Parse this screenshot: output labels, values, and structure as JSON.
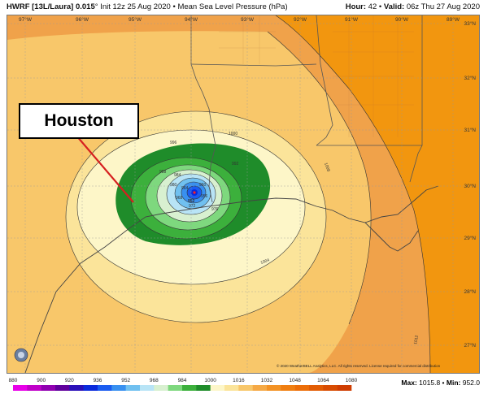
{
  "header": {
    "model": "HWRF [13L/Laura] 0.015",
    "degree": "°",
    "init": "Init 12z 25 Aug 2020",
    "sep": " • ",
    "product": "Mean Sea Level Pressure (hPa)",
    "hour_label": "Hour:",
    "hour_value": "42",
    "valid_label": "Valid:",
    "valid_value": "06z Thu 27 Aug 2020"
  },
  "map": {
    "lon_ticks": [
      "97°W",
      "96°W",
      "95°W",
      "94°W",
      "93°W",
      "92°W",
      "91°W",
      "90°W",
      "89°W"
    ],
    "lat_ticks": [
      "33°N",
      "32°N",
      "31°N",
      "30°N",
      "29°N",
      "28°N",
      "27°N"
    ],
    "contour_labels": [
      "1000",
      "1008",
      "1004",
      "1012",
      "996",
      "992",
      "988",
      "984",
      "980",
      "976",
      "972",
      "968",
      "964",
      "960",
      "956",
      "952"
    ],
    "center_value": "952",
    "annotation": "Houston",
    "copyright": "© 2020 WeatherBELL Analytics, LLC. All rights reserved. License required for commercial distribution",
    "logo_text": "WeatherBELL"
  },
  "colorbar": {
    "tick_labels": [
      "880",
      "900",
      "920",
      "936",
      "952",
      "968",
      "984",
      "1000",
      "1016",
      "1032",
      "1048",
      "1064",
      "1080"
    ],
    "colors": [
      "#e800e8",
      "#c000c8",
      "#9000b0",
      "#60009c",
      "#2a10b8",
      "#0a2adc",
      "#1a5cf0",
      "#3890f0",
      "#70c0f0",
      "#b8e4f6",
      "#d8f0d0",
      "#7ed87e",
      "#3cb03c",
      "#1f8c2a",
      "#fdf6c8",
      "#fbe49a",
      "#f8c76a",
      "#f5a945",
      "#f39224",
      "#f07e10",
      "#ec6d08",
      "#e25c04",
      "#d84c02",
      "#cf3d01"
    ]
  },
  "stats": {
    "max_label": "Max:",
    "max_value": "1015.8",
    "min_label": "Min:",
    "min_value": "952.0",
    "sep": " • "
  }
}
